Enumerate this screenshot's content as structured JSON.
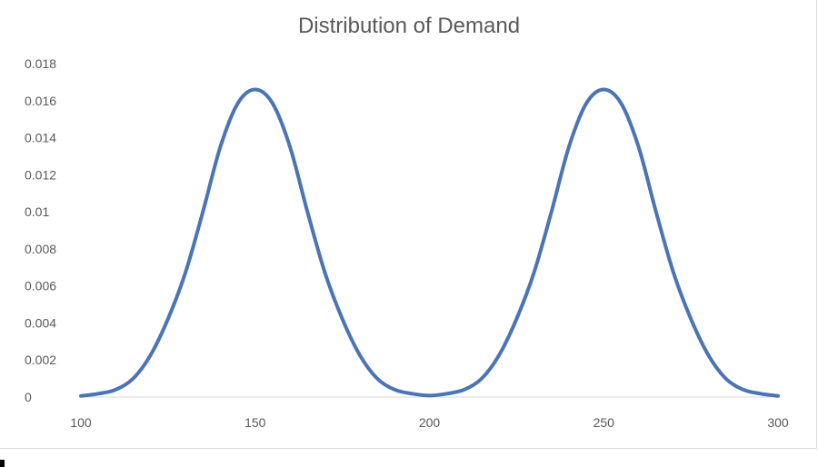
{
  "chart_data": {
    "type": "line",
    "title": "Distribution of Demand",
    "xlabel": "",
    "ylabel": "",
    "xlim": [
      100,
      300
    ],
    "ylim": [
      0,
      0.018
    ],
    "x_ticks": [
      "100",
      "150",
      "200",
      "250",
      "300"
    ],
    "y_ticks": [
      "0",
      "0.002",
      "0.004",
      "0.006",
      "0.008",
      "0.01",
      "0.012",
      "0.014",
      "0.016",
      "0.018"
    ],
    "grid": false,
    "legend": "none",
    "series": [
      {
        "color": "#4a74b5",
        "x": [
          100,
          105,
          110,
          115,
          120,
          125,
          130,
          135,
          140,
          145,
          150,
          155,
          160,
          165,
          170,
          175,
          180,
          185,
          190,
          195,
          200,
          205,
          210,
          215,
          220,
          225,
          230,
          235,
          240,
          245,
          250,
          255,
          260,
          265,
          270,
          275,
          280,
          285,
          290,
          295,
          300
        ],
        "y": [
          6e-05,
          0.00018,
          0.0004,
          0.001,
          0.00227,
          0.00422,
          0.00672,
          0.01,
          0.0135,
          0.01585,
          0.0166,
          0.01585,
          0.0135,
          0.01,
          0.00672,
          0.00422,
          0.00227,
          0.001,
          0.0004,
          0.00018,
          8e-05,
          0.00018,
          0.0004,
          0.001,
          0.00227,
          0.00422,
          0.00672,
          0.01,
          0.0135,
          0.01585,
          0.0166,
          0.01585,
          0.0135,
          0.01,
          0.00672,
          0.00422,
          0.00227,
          0.001,
          0.0004,
          0.00018,
          6e-05
        ]
      }
    ]
  }
}
